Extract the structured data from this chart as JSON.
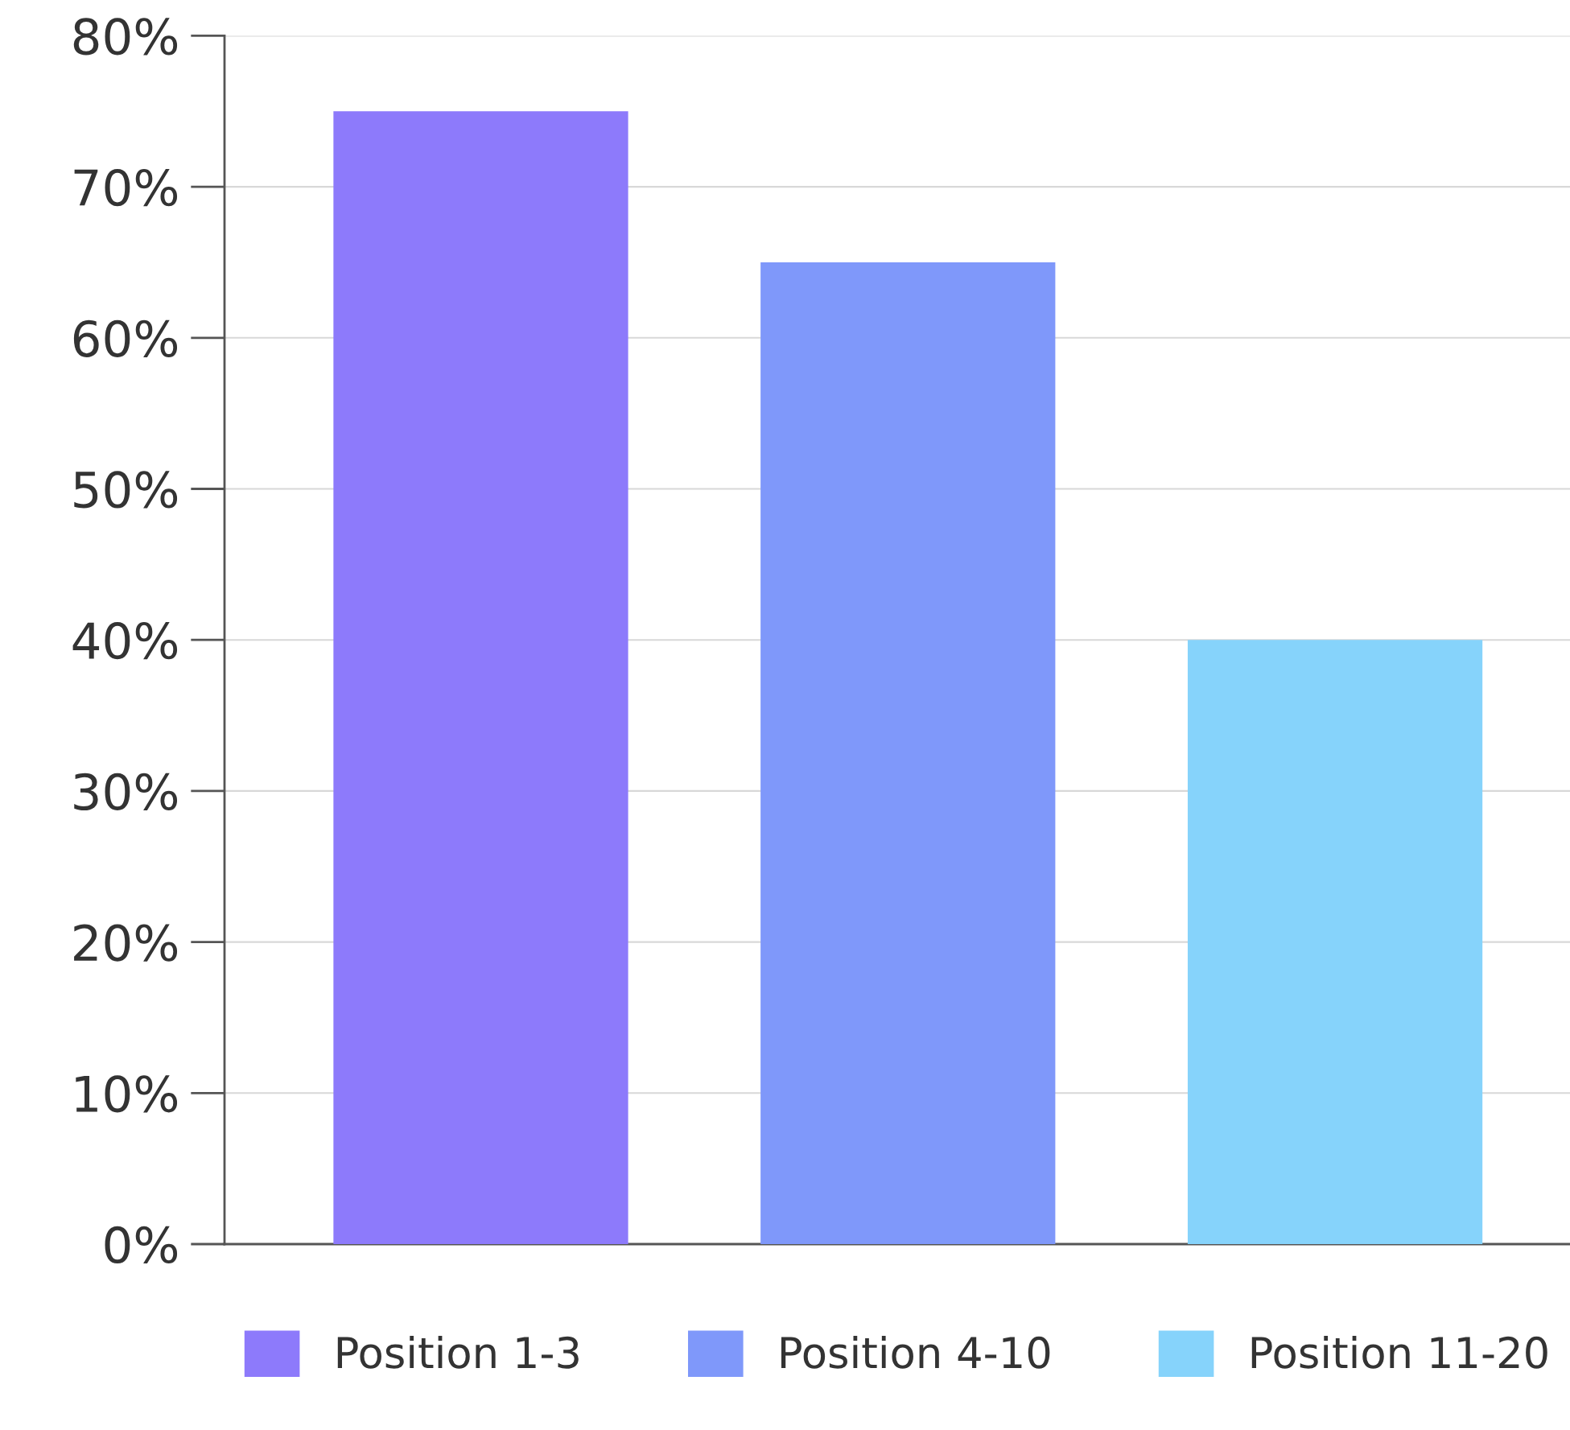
{
  "chart_data": {
    "type": "bar",
    "categories": [
      null,
      null,
      null
    ],
    "series": [
      {
        "name": "Position 1-3",
        "color": "#8d7afb",
        "values": [
          75,
          null,
          null
        ]
      },
      {
        "name": "Position 4-10",
        "color": "#7f98fa",
        "values": [
          null,
          65,
          null
        ]
      },
      {
        "name": "Position 11-20",
        "color": "#86d3fb",
        "values": [
          null,
          null,
          40
        ]
      }
    ],
    "ylim": [
      0,
      80
    ],
    "yticks": [
      {
        "value": 0,
        "label": "0%"
      },
      {
        "value": 10,
        "label": "10%"
      },
      {
        "value": 20,
        "label": "20%"
      },
      {
        "value": 30,
        "label": "30%"
      },
      {
        "value": 40,
        "label": "40%"
      },
      {
        "value": 50,
        "label": "50%"
      },
      {
        "value": 60,
        "label": "60%"
      },
      {
        "value": 70,
        "label": "70%"
      },
      {
        "value": 80,
        "label": "80%"
      }
    ],
    "grid": "y",
    "legend": "bottom",
    "tick_labels": "y"
  }
}
